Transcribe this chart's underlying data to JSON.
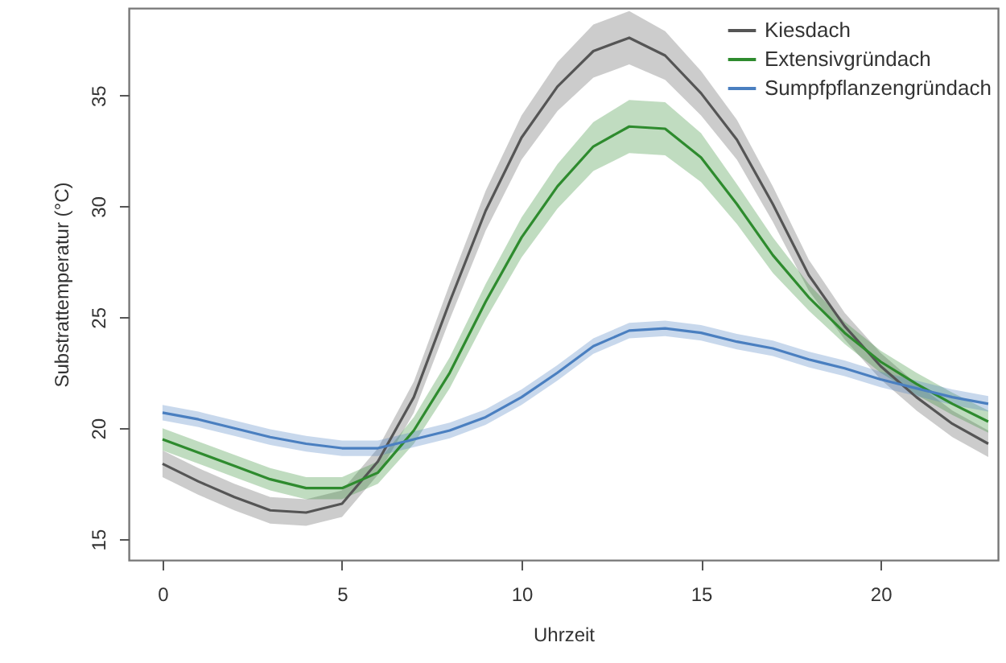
{
  "chart_data": {
    "type": "line",
    "xlabel": "Uhrzeit",
    "ylabel": "Substrattemperatur (°C)",
    "x": [
      0,
      1,
      2,
      3,
      4,
      5,
      6,
      7,
      8,
      9,
      10,
      11,
      12,
      13,
      14,
      15,
      16,
      17,
      18,
      19,
      20,
      21,
      22,
      23
    ],
    "xlim": [
      -0.94,
      23.27
    ],
    "xticks": [
      0,
      5,
      10,
      15,
      20
    ],
    "ylim": [
      14.06,
      38.94
    ],
    "yticks": [
      15,
      20,
      25,
      30,
      35
    ],
    "grid": false,
    "legend": "top right",
    "marker": "none",
    "line_style": "solid",
    "series": [
      {
        "name": "Kiesdach",
        "color": "#555555",
        "values": [
          18.4,
          17.6,
          16.9,
          16.3,
          16.2,
          16.6,
          18.5,
          21.4,
          25.7,
          29.8,
          33.1,
          35.4,
          37.0,
          37.6,
          36.8,
          35.1,
          33.0,
          30.1,
          26.9,
          24.6,
          22.8,
          21.4,
          20.2,
          19.3
        ],
        "lower": [
          17.8,
          17.0,
          16.3,
          15.7,
          15.6,
          16.0,
          17.9,
          20.7,
          24.9,
          28.9,
          32.1,
          34.3,
          35.8,
          36.4,
          35.7,
          34.1,
          32.1,
          29.3,
          26.2,
          24.0,
          22.2,
          20.8,
          19.6,
          18.7
        ],
        "upper": [
          19.0,
          18.2,
          17.5,
          16.9,
          16.8,
          17.2,
          19.1,
          22.1,
          26.5,
          30.7,
          34.1,
          36.5,
          38.2,
          38.8,
          37.9,
          36.1,
          33.9,
          30.9,
          27.6,
          25.2,
          23.4,
          22.0,
          20.8,
          19.9
        ]
      },
      {
        "name": "Extensivgründach",
        "color": "#2e8b2e",
        "values": [
          19.5,
          18.9,
          18.3,
          17.7,
          17.3,
          17.3,
          18.0,
          19.9,
          22.5,
          25.7,
          28.6,
          30.9,
          32.7,
          33.6,
          33.5,
          32.2,
          30.1,
          27.8,
          25.9,
          24.3,
          23.0,
          22.0,
          21.1,
          20.3
        ],
        "lower": [
          19.0,
          18.4,
          17.8,
          17.2,
          16.8,
          16.8,
          17.5,
          19.3,
          21.8,
          24.9,
          27.7,
          29.9,
          31.6,
          32.4,
          32.3,
          31.1,
          29.2,
          27.0,
          25.3,
          23.8,
          22.5,
          21.5,
          20.6,
          19.8
        ],
        "upper": [
          20.0,
          19.4,
          18.8,
          18.2,
          17.8,
          17.8,
          18.5,
          20.5,
          23.2,
          26.5,
          29.5,
          31.9,
          33.8,
          34.8,
          34.7,
          33.3,
          31.0,
          28.6,
          26.5,
          24.8,
          23.5,
          22.5,
          21.6,
          20.8
        ]
      },
      {
        "name": "Sumpfpflanzengründach",
        "color": "#4a7fc0",
        "values": [
          20.7,
          20.4,
          20.0,
          19.6,
          19.3,
          19.1,
          19.1,
          19.5,
          19.9,
          20.5,
          21.4,
          22.5,
          23.7,
          24.4,
          24.5,
          24.3,
          23.9,
          23.6,
          23.1,
          22.7,
          22.2,
          21.8,
          21.4,
          21.1
        ],
        "lower": [
          20.35,
          20.05,
          19.65,
          19.25,
          18.95,
          18.75,
          18.75,
          19.15,
          19.55,
          20.15,
          21.05,
          22.15,
          23.35,
          24.05,
          24.15,
          23.95,
          23.55,
          23.25,
          22.75,
          22.35,
          21.85,
          21.45,
          21.05,
          20.75
        ],
        "upper": [
          21.05,
          20.75,
          20.35,
          19.95,
          19.65,
          19.45,
          19.45,
          19.85,
          20.25,
          20.85,
          21.75,
          22.85,
          24.05,
          24.75,
          24.85,
          24.65,
          24.25,
          23.95,
          23.45,
          23.05,
          22.55,
          22.15,
          21.75,
          21.45
        ]
      }
    ]
  }
}
